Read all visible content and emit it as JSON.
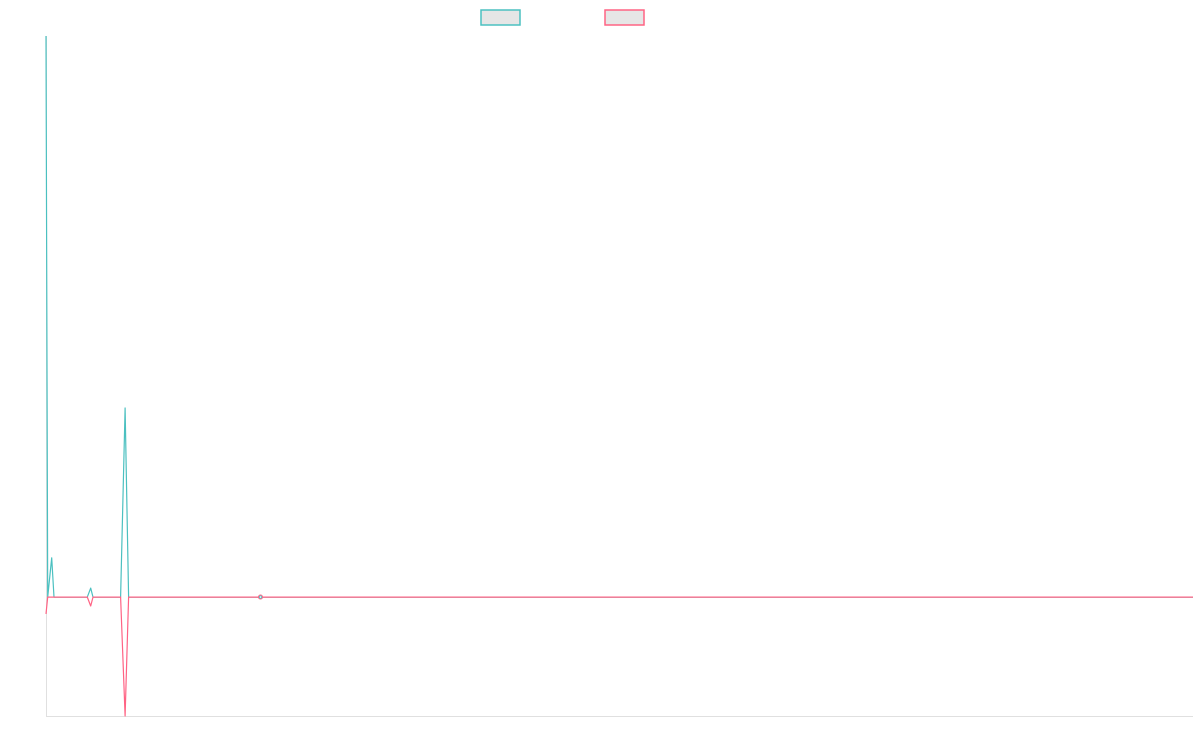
{
  "chart_data": {
    "type": "line",
    "title": "",
    "xlabel": "",
    "ylabel": "",
    "xlim": [
      0,
      100
    ],
    "ylim": [
      -21.2,
      100
    ],
    "grid": false,
    "legend_placement": "top",
    "series": [
      {
        "color": "#4bc0c0",
        "points": [
          [
            0,
            100
          ],
          [
            0.15,
            0
          ],
          [
            0.5,
            7
          ],
          [
            0.7,
            0
          ],
          [
            3.6,
            0
          ],
          [
            3.9,
            1.6
          ],
          [
            4.1,
            0
          ],
          [
            6.5,
            0
          ],
          [
            6.9,
            33.7
          ],
          [
            7.2,
            0
          ],
          [
            18.7,
            0
          ],
          [
            100,
            0
          ]
        ]
      },
      {
        "color": "#ff6384",
        "points": [
          [
            0,
            -3
          ],
          [
            0.15,
            0
          ],
          [
            3.6,
            0
          ],
          [
            3.9,
            -1.6
          ],
          [
            4.1,
            0
          ],
          [
            6.5,
            0
          ],
          [
            6.9,
            -21.2
          ],
          [
            7.2,
            0
          ],
          [
            18.7,
            0
          ],
          [
            100,
            0
          ]
        ]
      }
    ],
    "highlighted_point_x": 18.7,
    "legend_fill": "#e6e6e6",
    "axis_color": "#e0e0e0"
  }
}
